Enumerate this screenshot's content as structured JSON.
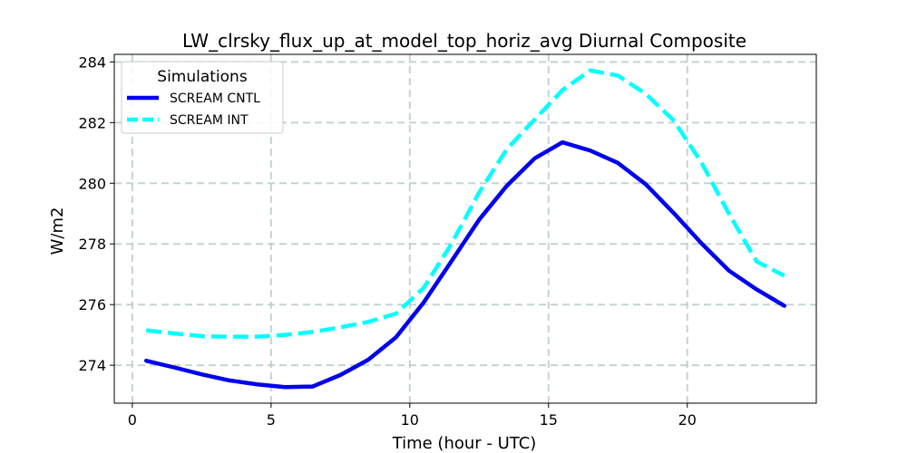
{
  "chart_data": {
    "type": "line",
    "title": "LW_clrsky_flux_up_at_model_top_horiz_avg Diurnal Composite",
    "xlabel": "Time (hour - UTC)",
    "ylabel": "W/m2",
    "xlim": [
      -0.65,
      24.65
    ],
    "ylim": [
      272.75,
      284.25
    ],
    "xticks": [
      0,
      5,
      10,
      15,
      20
    ],
    "yticks": [
      274,
      276,
      278,
      280,
      282,
      284
    ],
    "grid": true,
    "legend": {
      "title": "Simulations",
      "position": "top-left"
    },
    "x": [
      0.5,
      1.5,
      2.5,
      3.5,
      4.5,
      5.5,
      6.5,
      7.5,
      8.5,
      9.5,
      10.5,
      11.5,
      12.5,
      13.5,
      14.5,
      15.5,
      16.5,
      17.5,
      18.5,
      19.5,
      20.5,
      21.5,
      22.5,
      23.5
    ],
    "series": [
      {
        "name": "SCREAM CNTL",
        "color": "#0000ee",
        "style": "solid",
        "values": [
          274.15,
          273.93,
          273.7,
          273.5,
          273.37,
          273.28,
          273.3,
          273.68,
          274.18,
          274.92,
          276.07,
          277.43,
          278.8,
          279.92,
          280.82,
          281.35,
          281.08,
          280.67,
          279.97,
          279.03,
          278.03,
          277.12,
          276.5,
          275.96
        ]
      },
      {
        "name": "SCREAM INT",
        "color": "#00ffff",
        "style": "dashed",
        "values": [
          275.15,
          275.05,
          274.96,
          274.94,
          274.94,
          275.0,
          275.1,
          275.25,
          275.43,
          275.7,
          276.55,
          278.0,
          279.7,
          281.13,
          282.1,
          283.07,
          283.72,
          283.55,
          282.95,
          282.08,
          280.7,
          279.0,
          277.42,
          276.95
        ]
      }
    ]
  }
}
